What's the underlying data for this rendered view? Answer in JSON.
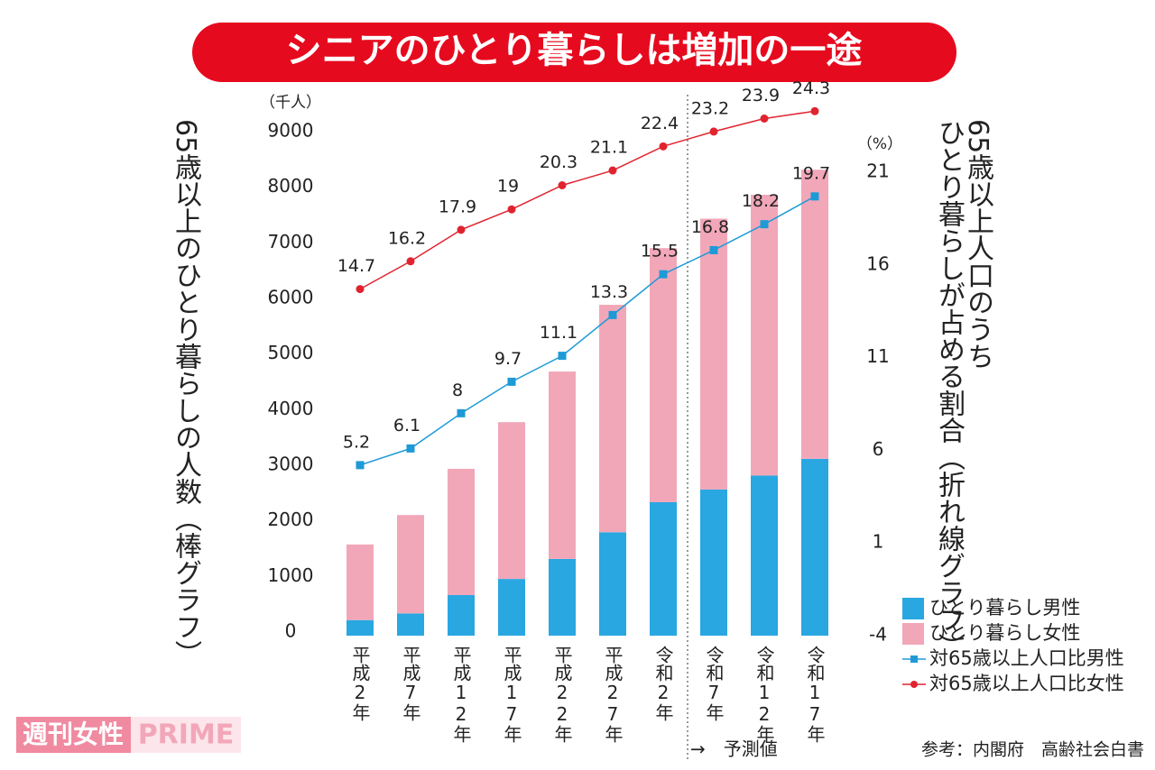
{
  "chart_data": {
    "type": "bar",
    "title": "シニアのひとり暮らしは増加の一途",
    "y_unit": "（千人）",
    "y2_unit": "（%）",
    "y_label": "65歳以上のひとり暮らしの人数（棒グラフ）",
    "y2_label": [
      "65歳以上人口のうち",
      "ひとり暮らしが占める割合（折れ線グラフ）"
    ],
    "categories": [
      "平成2年",
      "平成7年",
      "平成12年",
      "平成17年",
      "平成22年",
      "平成27年",
      "令和2年",
      "令和7年",
      "令和12年",
      "令和17年"
    ],
    "series": [
      {
        "name": "ひとり暮らし男性",
        "type": "bar",
        "color": "#29a7e1",
        "values": [
          280,
          400,
          730,
          1020,
          1380,
          1860,
          2400,
          2630,
          2880,
          3180
        ]
      },
      {
        "name": "ひとり暮らし女性",
        "type": "bar",
        "color": "#f2a7b9",
        "values": [
          1360,
          1770,
          2270,
          2820,
          3370,
          4090,
          4570,
          4870,
          5050,
          5200
        ]
      },
      {
        "name": "対65歳以上人口比男性",
        "type": "line",
        "axis": "y2",
        "color": "#1e9ad6",
        "values": [
          5.2,
          6.1,
          8.0,
          9.7,
          11.1,
          13.3,
          15.5,
          16.8,
          18.2,
          19.7
        ]
      },
      {
        "name": "対65歳以上人口比女性",
        "type": "line",
        "axis": "y2",
        "color": "#e0242f",
        "values": [
          14.7,
          16.2,
          17.9,
          19.0,
          20.3,
          21.1,
          22.4,
          23.2,
          23.9,
          24.3
        ]
      }
    ],
    "ylim": [
      0,
      9000
    ],
    "yticks": [
      0,
      1000,
      2000,
      3000,
      4000,
      5000,
      6000,
      7000,
      8000,
      9000
    ],
    "y2lim": [
      -4,
      23
    ],
    "y2ticks": [
      -4,
      1,
      6,
      11,
      16,
      21
    ],
    "annotation": "→　予測値",
    "source": "参考：内閣府　高齢社会白書",
    "brand": [
      "週刊女性",
      "PRIME"
    ]
  }
}
